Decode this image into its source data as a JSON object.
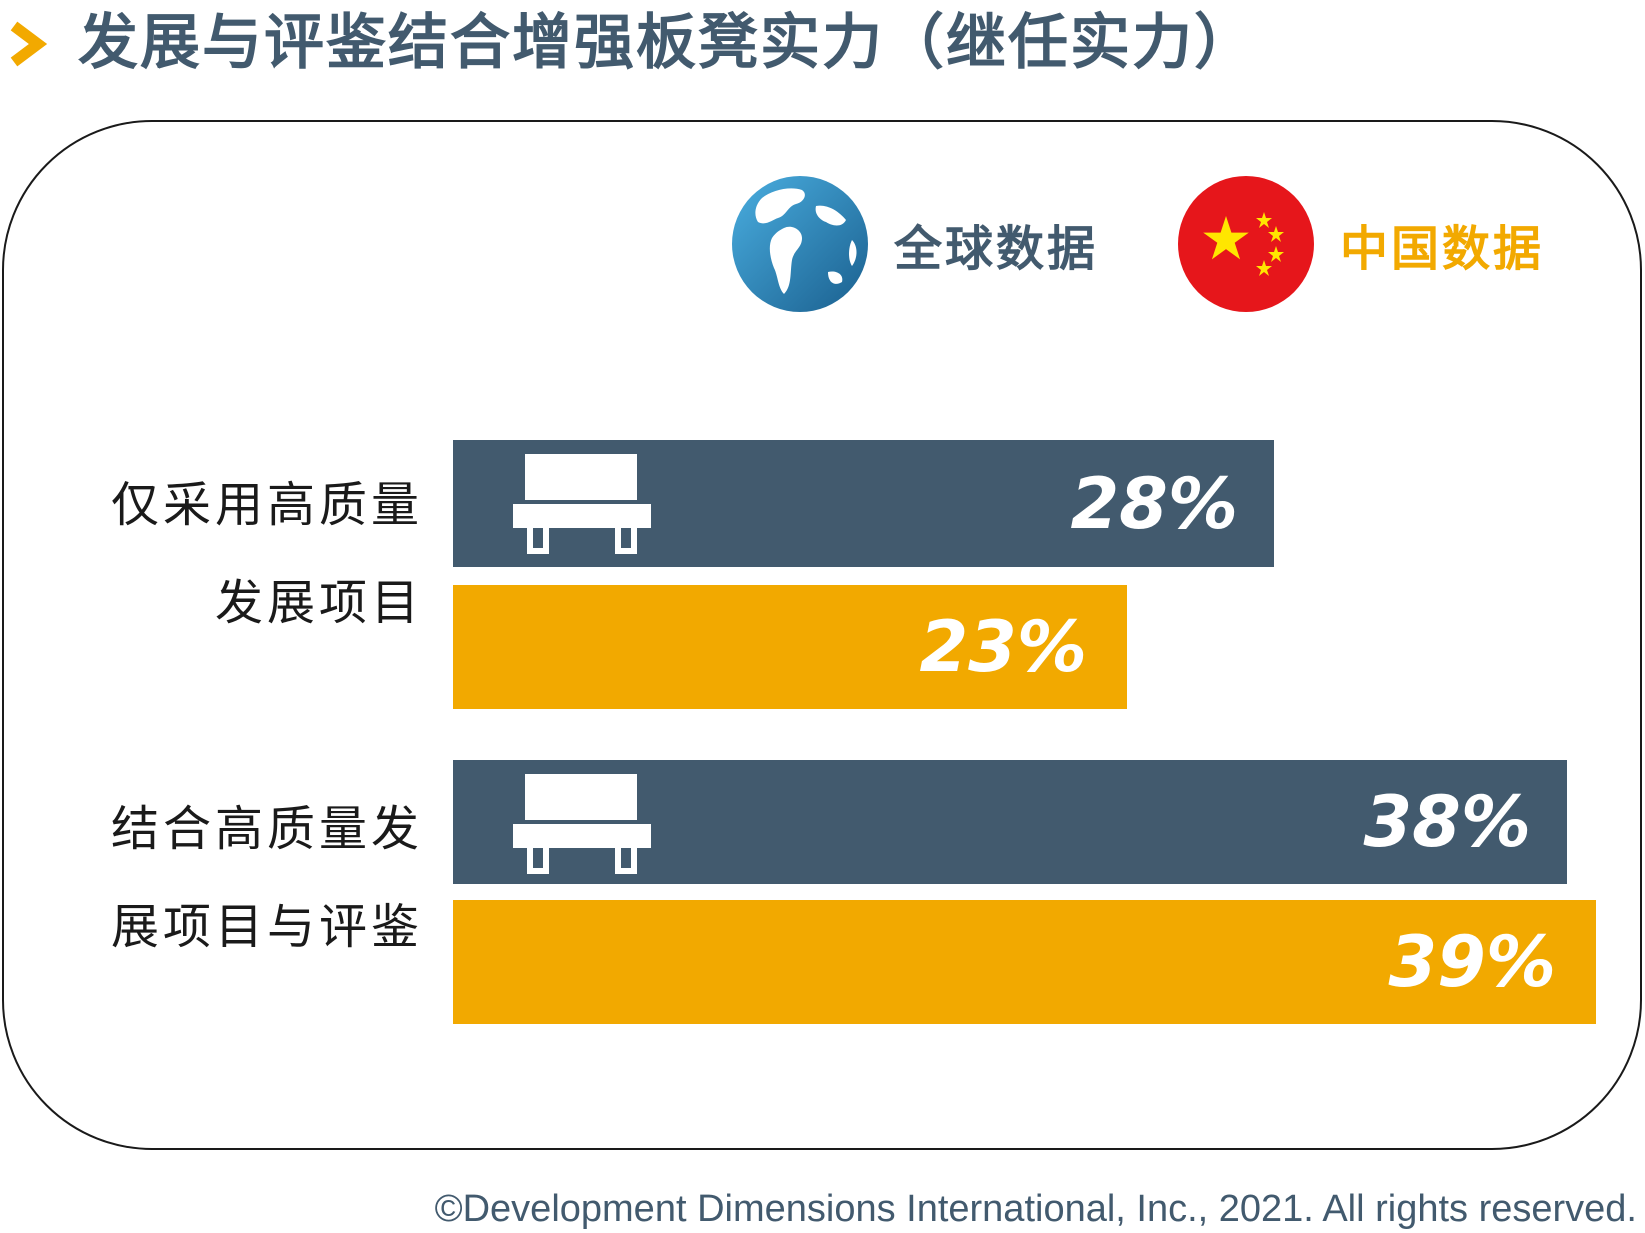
{
  "title": "发展与评鉴结合增强板凳实力（继任实力）",
  "colors": {
    "global": "#425a6e",
    "china": "#f2a900",
    "accent": "#f2a900"
  },
  "legend": {
    "global": {
      "label": "全球数据",
      "icon": "globe-icon"
    },
    "china": {
      "label": "中国数据",
      "icon": "china-flag-icon"
    }
  },
  "groups": [
    {
      "label_lines": [
        "仅采用高质量",
        "发展项目"
      ]
    },
    {
      "label_lines": [
        "结合高质量发",
        "展项目与评鉴"
      ]
    }
  ],
  "chart_data": {
    "type": "bar",
    "orientation": "horizontal",
    "categories": [
      "仅采用高质量发展项目",
      "结合高质量发展项目与评鉴"
    ],
    "series": [
      {
        "name": "全球数据",
        "values": [
          28,
          38
        ],
        "labels": [
          "28%",
          "38%"
        ],
        "color": "#425a6e",
        "icon": "bench-icon"
      },
      {
        "name": "中国数据",
        "values": [
          23,
          39
        ],
        "labels": [
          "23%",
          "39%"
        ],
        "color": "#f2a900"
      }
    ],
    "xlim": [
      0,
      39
    ],
    "grid": false,
    "legend": "top-right"
  },
  "footer": "©Development Dimensions International, Inc., 2021. All rights reserved."
}
